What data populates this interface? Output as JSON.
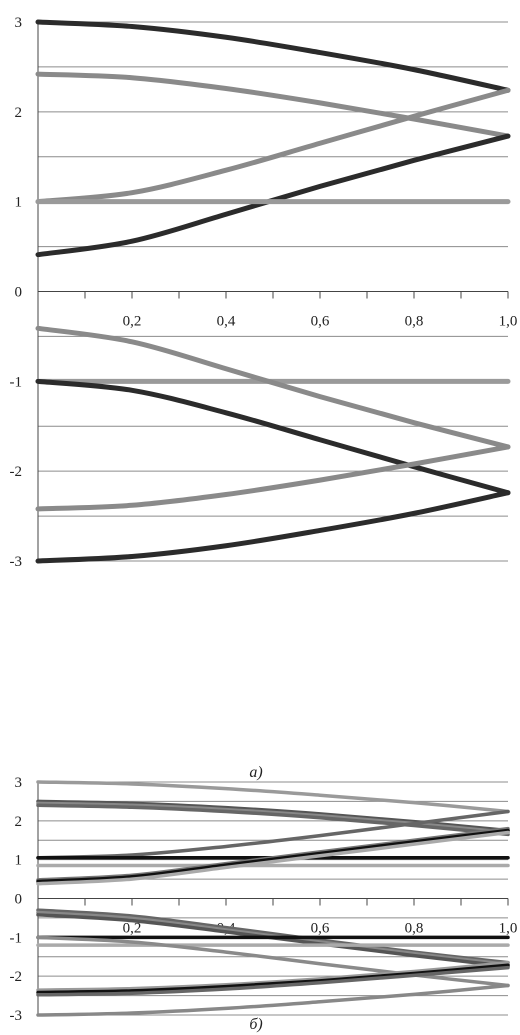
{
  "figure": {
    "caption_a": "a)",
    "caption_b": "б)"
  },
  "chart_data": [
    {
      "type": "line",
      "panel": "a",
      "x_ticks": [
        "0,2",
        "0,4",
        "0,6",
        "0,8",
        "1,0"
      ],
      "y_ticks": [
        "3",
        "2",
        "1",
        "0",
        "-1",
        "-2",
        "-3"
      ],
      "xlim": [
        0,
        1.0
      ],
      "ylim": [
        -3,
        3
      ],
      "grid": true,
      "series": [
        {
          "color": "#2b2b2b",
          "x": [
            0,
            0.2,
            0.4,
            0.6,
            0.8,
            1.0
          ],
          "y": [
            3.0,
            2.95,
            2.83,
            2.66,
            2.47,
            2.24
          ]
        },
        {
          "color": "#8a8a8a",
          "x": [
            0,
            0.2,
            0.4,
            0.6,
            0.8,
            1.0
          ],
          "y": [
            2.42,
            2.38,
            2.26,
            2.1,
            1.92,
            1.73
          ]
        },
        {
          "color": "#8a8a8a",
          "x": [
            0,
            0.2,
            0.4,
            0.6,
            0.8,
            1.0
          ],
          "y": [
            1.0,
            1.1,
            1.35,
            1.65,
            1.95,
            2.24
          ]
        },
        {
          "color": "#2b2b2b",
          "x": [
            0,
            0.2,
            0.4,
            0.6,
            0.8,
            1.0
          ],
          "y": [
            0.41,
            0.56,
            0.86,
            1.17,
            1.46,
            1.73
          ]
        },
        {
          "color": "#9a9a9a",
          "x": [
            0,
            1.0
          ],
          "y": [
            1.0,
            1.0
          ]
        },
        {
          "color": "#9a9a9a",
          "x": [
            0,
            1.0
          ],
          "y": [
            -1.0,
            -1.0
          ]
        },
        {
          "color": "#8a8a8a",
          "x": [
            0,
            0.2,
            0.4,
            0.6,
            0.8,
            1.0
          ],
          "y": [
            -0.41,
            -0.56,
            -0.86,
            -1.17,
            -1.46,
            -1.73
          ]
        },
        {
          "color": "#2b2b2b",
          "x": [
            0,
            0.2,
            0.4,
            0.6,
            0.8,
            1.0
          ],
          "y": [
            -1.0,
            -1.1,
            -1.35,
            -1.65,
            -1.95,
            -2.24
          ]
        },
        {
          "color": "#8a8a8a",
          "x": [
            0,
            0.2,
            0.4,
            0.6,
            0.8,
            1.0
          ],
          "y": [
            -2.42,
            -2.38,
            -2.26,
            -2.1,
            -1.92,
            -1.73
          ]
        },
        {
          "color": "#2b2b2b",
          "x": [
            0,
            0.2,
            0.4,
            0.6,
            0.8,
            1.0
          ],
          "y": [
            -3.0,
            -2.95,
            -2.83,
            -2.66,
            -2.47,
            -2.24
          ]
        }
      ]
    },
    {
      "type": "line",
      "panel": "б",
      "x_ticks": [
        "0,2",
        "0,4",
        "0,6",
        "0,8",
        "1,0"
      ],
      "y_ticks": [
        "3",
        "2",
        "1",
        "0",
        "-1",
        "-2",
        "-3"
      ],
      "xlim": [
        0,
        1.0
      ],
      "ylim": [
        -3,
        3
      ],
      "grid": true,
      "series": [
        {
          "color": "#9a9a9a",
          "x": [
            0,
            0.2,
            0.4,
            0.6,
            0.8,
            1.0
          ],
          "y": [
            3.0,
            2.95,
            2.83,
            2.66,
            2.47,
            2.24
          ]
        },
        {
          "color": "#555555",
          "x": [
            0,
            0.2,
            0.4,
            0.6,
            0.8,
            1.0
          ],
          "y": [
            2.5,
            2.45,
            2.34,
            2.18,
            1.98,
            1.75
          ]
        },
        {
          "color": "#888888",
          "x": [
            0,
            0.2,
            0.4,
            0.6,
            0.8,
            1.0
          ],
          "y": [
            2.45,
            2.4,
            2.29,
            2.13,
            1.93,
            1.7
          ]
        },
        {
          "color": "#666666",
          "x": [
            0,
            0.2,
            0.4,
            0.6,
            0.8,
            1.0
          ],
          "y": [
            2.4,
            2.35,
            2.24,
            2.08,
            1.88,
            1.65
          ]
        },
        {
          "color": "#666666",
          "x": [
            0,
            0.2,
            0.4,
            0.6,
            0.8,
            1.0
          ],
          "y": [
            1.05,
            1.12,
            1.34,
            1.62,
            1.93,
            2.24
          ]
        },
        {
          "color": "#111111",
          "x": [
            0,
            1.0
          ],
          "y": [
            1.05,
            1.05
          ]
        },
        {
          "color": "#aaaaaa",
          "x": [
            0,
            1.0
          ],
          "y": [
            0.85,
            0.85
          ]
        },
        {
          "color": "#777777",
          "x": [
            0,
            0.2,
            0.4,
            0.6,
            0.8,
            1.0
          ],
          "y": [
            0.48,
            0.6,
            0.9,
            1.2,
            1.5,
            1.8
          ]
        },
        {
          "color": "#111111",
          "x": [
            0,
            0.2,
            0.4,
            0.6,
            0.8,
            1.0
          ],
          "y": [
            0.44,
            0.56,
            0.86,
            1.16,
            1.46,
            1.75
          ]
        },
        {
          "color": "#aaaaaa",
          "x": [
            0,
            0.2,
            0.4,
            0.6,
            0.8,
            1.0
          ],
          "y": [
            0.38,
            0.5,
            0.8,
            1.1,
            1.4,
            1.7
          ]
        },
        {
          "color": "#666666",
          "x": [
            0,
            0.2,
            0.4,
            0.6,
            0.8,
            1.0
          ],
          "y": [
            -0.3,
            -0.45,
            -0.75,
            -1.07,
            -1.38,
            -1.65
          ]
        },
        {
          "color": "#888888",
          "x": [
            0,
            0.2,
            0.4,
            0.6,
            0.8,
            1.0
          ],
          "y": [
            -0.36,
            -0.51,
            -0.81,
            -1.12,
            -1.42,
            -1.7
          ]
        },
        {
          "color": "#555555",
          "x": [
            0,
            0.2,
            0.4,
            0.6,
            0.8,
            1.0
          ],
          "y": [
            -0.42,
            -0.57,
            -0.86,
            -1.17,
            -1.47,
            -1.75
          ]
        },
        {
          "color": "#111111",
          "x": [
            0,
            1.0
          ],
          "y": [
            -1.0,
            -1.0
          ]
        },
        {
          "color": "#aaaaaa",
          "x": [
            0,
            1.0
          ],
          "y": [
            -1.2,
            -1.2
          ]
        },
        {
          "color": "#8a8a8a",
          "x": [
            0,
            0.2,
            0.4,
            0.6,
            0.8,
            1.0
          ],
          "y": [
            -1.0,
            -1.12,
            -1.38,
            -1.68,
            -1.97,
            -2.24
          ]
        },
        {
          "color": "#9a9a9a",
          "x": [
            0,
            0.2,
            0.4,
            0.6,
            0.8,
            1.0
          ],
          "y": [
            -2.36,
            -2.32,
            -2.22,
            -2.07,
            -1.88,
            -1.65
          ]
        },
        {
          "color": "#111111",
          "x": [
            0,
            0.2,
            0.4,
            0.6,
            0.8,
            1.0
          ],
          "y": [
            -2.42,
            -2.38,
            -2.27,
            -2.12,
            -1.93,
            -1.72
          ]
        },
        {
          "color": "#666666",
          "x": [
            0,
            0.2,
            0.4,
            0.6,
            0.8,
            1.0
          ],
          "y": [
            -2.48,
            -2.44,
            -2.33,
            -2.17,
            -1.98,
            -1.78
          ]
        },
        {
          "color": "#888888",
          "x": [
            0,
            0.2,
            0.4,
            0.6,
            0.8,
            1.0
          ],
          "y": [
            -3.0,
            -2.95,
            -2.83,
            -2.66,
            -2.47,
            -2.24
          ]
        }
      ]
    }
  ]
}
